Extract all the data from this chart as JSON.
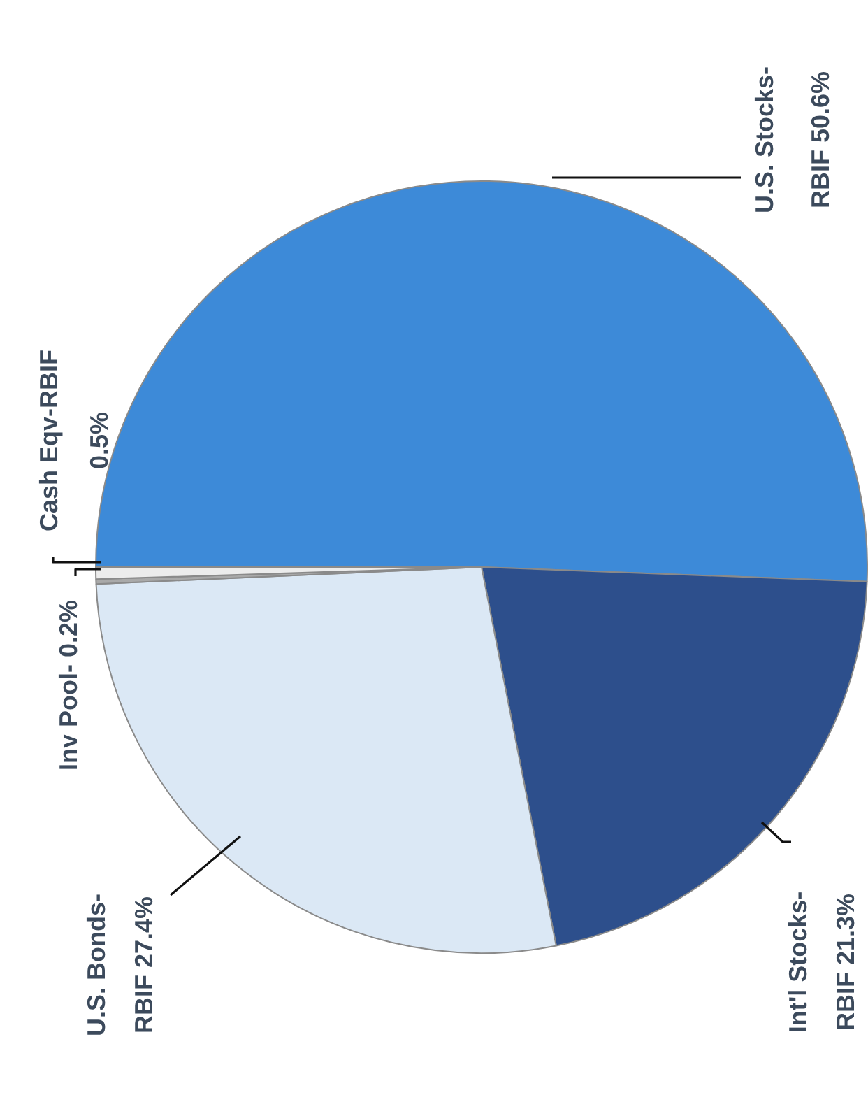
{
  "chart_data": {
    "type": "pie",
    "categories": [
      "U.S. Stocks-RBIF",
      "Int'l Stocks-RBIF",
      "U.S. Bonds-RBIF",
      "Inv Pool-",
      "Cash Eqv-RBIF"
    ],
    "values": [
      50.6,
      21.3,
      27.4,
      0.2,
      0.5
    ],
    "colors": [
      "#3d8ad8",
      "#2d4f8c",
      "#dbe8f5",
      "#a9a9a9",
      "#ececec"
    ],
    "value_labels": [
      "50.6%",
      "21.3%",
      "27.4%",
      "0.2%",
      "0.5%"
    ],
    "legend": false
  }
}
